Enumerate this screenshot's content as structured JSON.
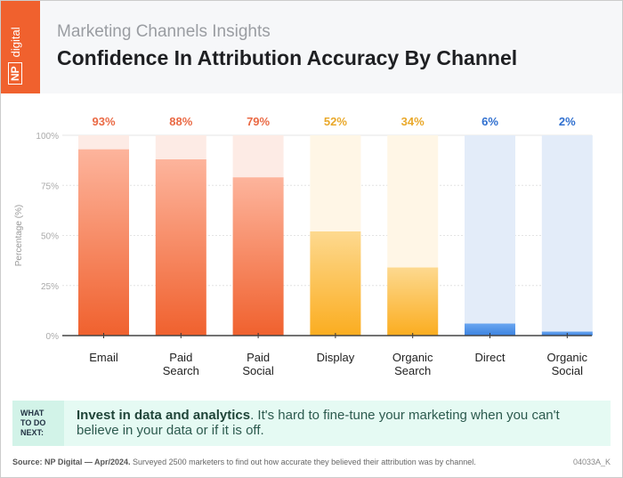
{
  "header": {
    "logo_text": "digital",
    "logo_mark": "NP",
    "subtitle": "Marketing Channels Insights",
    "title": "Confidence In Attribution Accuracy By Channel"
  },
  "chart_data": {
    "type": "bar",
    "ylabel": "Percentage (%)",
    "ylim": [
      0,
      100
    ],
    "yticks": [
      "0%",
      "25%",
      "50%",
      "75%",
      "100%"
    ],
    "categories": [
      "Email",
      "Paid Search",
      "Paid Social",
      "Display",
      "Organic Search",
      "Direct",
      "Organic Social"
    ],
    "category_lines": [
      [
        "Email"
      ],
      [
        "Paid",
        "Search"
      ],
      [
        "Paid",
        "Social"
      ],
      [
        "Display"
      ],
      [
        "Organic",
        "Search"
      ],
      [
        "Direct"
      ],
      [
        "Organic",
        "Social"
      ]
    ],
    "values": [
      93,
      88,
      79,
      52,
      34,
      6,
      2
    ],
    "data_labels": [
      "93%",
      "88%",
      "79%",
      "52%",
      "34%",
      "6%",
      "2%"
    ],
    "grid": true,
    "colors": {
      "top": [
        "#f0612e",
        "#f0612e",
        "#f0612e",
        "#fbad20",
        "#fbad20",
        "#3b82e0",
        "#3b82e0"
      ],
      "light": [
        "#fdb49c",
        "#fdb49c",
        "#fdb49c",
        "#fdd98f",
        "#fdd98f",
        "#6aa6f0",
        "#6aa6f0"
      ],
      "track": [
        "#fdebe5",
        "#fdebe5",
        "#fdebe5",
        "#fff6e6",
        "#fff6e6",
        "#e3ecf9",
        "#e3ecf9"
      ],
      "label": [
        "#ea6a45",
        "#ea6a45",
        "#ea6a45",
        "#e9a82a",
        "#e9a82a",
        "#2f6fcf",
        "#2f6fcf"
      ]
    }
  },
  "next": {
    "label": "WHAT TO DO NEXT:",
    "bold": "Invest in data and analytics",
    "text": ". It's hard to fine-tune your marketing when you can't believe in your data or if it is off."
  },
  "footer": {
    "source_bold": "Source: NP Digital — Apr/2024.",
    "source": " Surveyed 2500 marketers to find out how accurate they believed their attribution was by channel.",
    "code": "04033A_K"
  }
}
